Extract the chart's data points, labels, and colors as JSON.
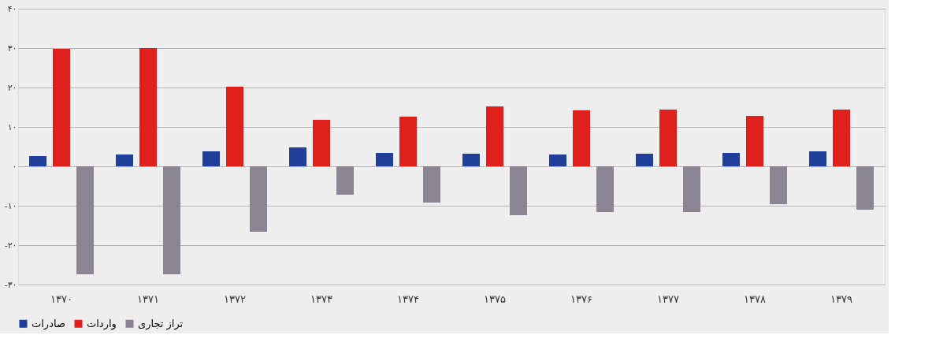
{
  "chart_data": {
    "type": "bar",
    "categories": [
      "۱۳۷۰",
      "۱۳۷۱",
      "۱۳۷۲",
      "۱۳۷۳",
      "۱۳۷۴",
      "۱۳۷۵",
      "۱۳۷۶",
      "۱۳۷۷",
      "۱۳۷۸",
      "۱۳۷۹"
    ],
    "series": [
      {
        "name": "صادرات",
        "color": "#1f3f9a",
        "values": [
          2.6,
          3,
          3.8,
          4.8,
          3.4,
          3.2,
          3,
          3.2,
          3.4,
          3.8
        ]
      },
      {
        "name": "واردات",
        "color": "#e0201c",
        "values": [
          29.8,
          30,
          20.2,
          11.8,
          12.6,
          15.2,
          14.2,
          14.4,
          12.8,
          14.4
        ]
      },
      {
        "name": "تراز تجاری",
        "color": "#8a8592",
        "values": [
          -27.4,
          -27.4,
          -16.6,
          -7.2,
          -9.2,
          -12.4,
          -11.6,
          -11.6,
          -9.6,
          -11
        ]
      }
    ],
    "ylim": [
      -30,
      40
    ],
    "yticks": [
      {
        "value": -30,
        "label": "-۳۰"
      },
      {
        "value": -20,
        "label": "-۲۰"
      },
      {
        "value": -10,
        "label": "-۱۰"
      },
      {
        "value": 0,
        "label": "۰"
      },
      {
        "value": 10,
        "label": "۱۰"
      },
      {
        "value": 20,
        "label": "۲۰"
      },
      {
        "value": 30,
        "label": "۳۰"
      },
      {
        "value": 40,
        "label": "۴۰"
      }
    ],
    "grid": "y",
    "legend": "bottom"
  }
}
